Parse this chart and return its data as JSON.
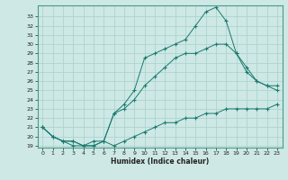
{
  "xlabel": "Humidex (Indice chaleur)",
  "bg_color": "#cde8e5",
  "grid_color": "#a8d0cc",
  "line_color": "#1a7a6e",
  "xlim": [
    -0.5,
    23.5
  ],
  "ylim": [
    18.8,
    34.2
  ],
  "xticks": [
    0,
    1,
    2,
    3,
    4,
    5,
    6,
    7,
    8,
    9,
    10,
    11,
    12,
    13,
    14,
    15,
    16,
    17,
    18,
    19,
    20,
    21,
    22,
    23
  ],
  "yticks": [
    19,
    20,
    21,
    22,
    23,
    24,
    25,
    26,
    27,
    28,
    29,
    30,
    31,
    32,
    33
  ],
  "line1_x": [
    0,
    1,
    2,
    3,
    4,
    5,
    6,
    7,
    8,
    9,
    10,
    11,
    12,
    13,
    14,
    15,
    16,
    17,
    18,
    19,
    20,
    21,
    22,
    23
  ],
  "line1_y": [
    21.0,
    20.0,
    19.5,
    19.5,
    19.0,
    19.0,
    19.5,
    19.0,
    19.5,
    20.0,
    20.5,
    21.0,
    21.5,
    21.5,
    22.0,
    22.0,
    22.5,
    22.5,
    23.0,
    23.0,
    23.0,
    23.0,
    23.0,
    23.5
  ],
  "line2_x": [
    0,
    1,
    2,
    3,
    4,
    5,
    6,
    7,
    8,
    9,
    10,
    11,
    12,
    13,
    14,
    15,
    16,
    17,
    18,
    19,
    20,
    21,
    22,
    23
  ],
  "line2_y": [
    21.0,
    20.0,
    19.5,
    19.5,
    19.0,
    19.5,
    19.5,
    22.5,
    23.5,
    25.0,
    28.5,
    29.0,
    29.5,
    30.0,
    30.5,
    32.0,
    33.5,
    34.0,
    32.5,
    29.0,
    27.5,
    26.0,
    25.5,
    25.5
  ],
  "line3_x": [
    0,
    1,
    2,
    3,
    4,
    5,
    6,
    7,
    8,
    9,
    10,
    11,
    12,
    13,
    14,
    15,
    16,
    17,
    18,
    19,
    20,
    21,
    22,
    23
  ],
  "line3_y": [
    21.0,
    20.0,
    19.5,
    19.0,
    19.0,
    19.0,
    19.5,
    22.5,
    23.0,
    24.0,
    25.5,
    26.5,
    27.5,
    28.5,
    29.0,
    29.0,
    29.5,
    30.0,
    30.0,
    29.0,
    27.0,
    26.0,
    25.5,
    25.0
  ]
}
